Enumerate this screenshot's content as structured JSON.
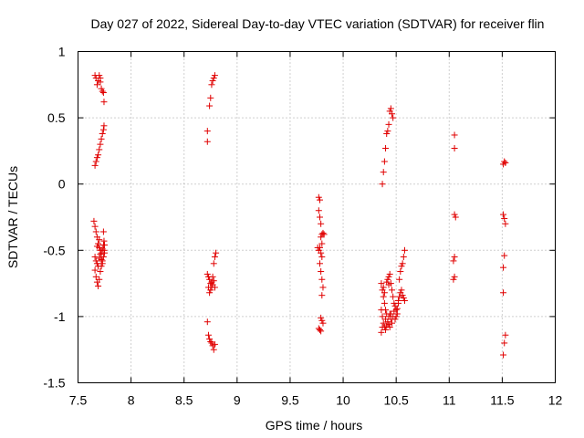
{
  "chart_data": {
    "type": "scatter",
    "title": "Day 027 of 2022, Sidereal Day-to-day VTEC variation (SDTVAR) for receiver flin",
    "xlabel": "GPS time / hours",
    "ylabel": "SDTVAR / TECUs",
    "xlim": [
      7.5,
      12
    ],
    "ylim": [
      -1.5,
      1
    ],
    "xticks": [
      "7.5",
      "8",
      "8.5",
      "9",
      "9.5",
      "10",
      "10.5",
      "11",
      "11.5",
      "12"
    ],
    "yticks": [
      "-1.5",
      "-1",
      "-0.5",
      "0",
      "0.5",
      "1"
    ],
    "grid": true,
    "marker": "+",
    "color": "#e00000",
    "series": [
      {
        "name": "SDTVAR",
        "points": [
          [
            7.66,
            0.82
          ],
          [
            7.67,
            0.8
          ],
          [
            7.68,
            0.75
          ],
          [
            7.69,
            0.78
          ],
          [
            7.7,
            0.82
          ],
          [
            7.71,
            0.8
          ],
          [
            7.71,
            0.77
          ],
          [
            7.72,
            0.72
          ],
          [
            7.73,
            0.7
          ],
          [
            7.74,
            0.69
          ],
          [
            7.745,
            0.62
          ],
          [
            7.66,
            0.14
          ],
          [
            7.67,
            0.17
          ],
          [
            7.68,
            0.2
          ],
          [
            7.69,
            0.22
          ],
          [
            7.7,
            0.26
          ],
          [
            7.71,
            0.3
          ],
          [
            7.72,
            0.34
          ],
          [
            7.73,
            0.38
          ],
          [
            7.74,
            0.41
          ],
          [
            7.745,
            0.44
          ],
          [
            7.65,
            -0.28
          ],
          [
            7.66,
            -0.32
          ],
          [
            7.67,
            -0.36
          ],
          [
            7.68,
            -0.4
          ],
          [
            7.69,
            -0.45
          ],
          [
            7.7,
            -0.48
          ],
          [
            7.71,
            -0.5
          ],
          [
            7.72,
            -0.52
          ],
          [
            7.73,
            -0.49
          ],
          [
            7.74,
            -0.46
          ],
          [
            7.745,
            -0.43
          ],
          [
            7.75,
            -0.52
          ],
          [
            7.66,
            -0.55
          ],
          [
            7.67,
            -0.58
          ],
          [
            7.68,
            -0.6
          ],
          [
            7.69,
            -0.62
          ],
          [
            7.7,
            -0.56
          ],
          [
            7.71,
            -0.53
          ],
          [
            7.72,
            -0.57
          ],
          [
            7.73,
            -0.6
          ],
          [
            7.74,
            -0.55
          ],
          [
            7.745,
            -0.5
          ],
          [
            7.75,
            -0.46
          ],
          [
            7.66,
            -0.65
          ],
          [
            7.67,
            -0.7
          ],
          [
            7.68,
            -0.74
          ],
          [
            7.69,
            -0.77
          ],
          [
            7.7,
            -0.72
          ],
          [
            7.71,
            -0.66
          ],
          [
            7.72,
            -0.62
          ],
          [
            7.73,
            -0.58
          ],
          [
            7.74,
            -0.36
          ],
          [
            7.7,
            -0.42
          ],
          [
            7.68,
            -0.47
          ],
          [
            8.72,
            0.4
          ],
          [
            8.72,
            0.32
          ],
          [
            8.74,
            0.59
          ],
          [
            8.75,
            0.65
          ],
          [
            8.76,
            0.75
          ],
          [
            8.77,
            0.78
          ],
          [
            8.78,
            0.8
          ],
          [
            8.79,
            0.82
          ],
          [
            8.72,
            -0.68
          ],
          [
            8.73,
            -0.7
          ],
          [
            8.74,
            -0.72
          ],
          [
            8.75,
            -0.75
          ],
          [
            8.76,
            -0.78
          ],
          [
            8.77,
            -0.76
          ],
          [
            8.78,
            -0.73
          ],
          [
            8.79,
            -0.78
          ],
          [
            8.73,
            -0.78
          ],
          [
            8.74,
            -0.82
          ],
          [
            8.75,
            -0.8
          ],
          [
            8.76,
            -0.74
          ],
          [
            8.77,
            -0.7
          ],
          [
            8.78,
            -0.6
          ],
          [
            8.79,
            -0.55
          ],
          [
            8.8,
            -0.52
          ],
          [
            8.72,
            -1.04
          ],
          [
            8.73,
            -1.14
          ],
          [
            8.74,
            -1.17
          ],
          [
            8.75,
            -1.19
          ],
          [
            8.76,
            -1.2
          ],
          [
            8.77,
            -1.22
          ],
          [
            8.78,
            -1.25
          ],
          [
            8.79,
            -1.21
          ],
          [
            9.77,
            -0.1
          ],
          [
            9.78,
            -0.12
          ],
          [
            9.77,
            -0.2
          ],
          [
            9.78,
            -0.25
          ],
          [
            9.79,
            -0.3
          ],
          [
            9.8,
            -0.38
          ],
          [
            9.79,
            -0.4
          ],
          [
            9.8,
            -0.45
          ],
          [
            9.78,
            -0.48
          ],
          [
            9.79,
            -0.52
          ],
          [
            9.8,
            -0.55
          ],
          [
            9.78,
            -0.6
          ],
          [
            9.79,
            -0.66
          ],
          [
            9.8,
            -0.72
          ],
          [
            9.81,
            -0.78
          ],
          [
            9.8,
            -0.84
          ],
          [
            9.77,
            -0.5
          ],
          [
            9.76,
            -0.48
          ],
          [
            9.81,
            -0.37
          ],
          [
            9.82,
            -0.38
          ],
          [
            9.79,
            -1.01
          ],
          [
            9.8,
            -1.03
          ],
          [
            9.81,
            -1.05
          ],
          [
            9.77,
            -1.09
          ],
          [
            9.78,
            -1.1
          ],
          [
            9.79,
            -1.11
          ],
          [
            10.37,
            0.0
          ],
          [
            10.38,
            0.09
          ],
          [
            10.39,
            0.17
          ],
          [
            10.4,
            0.27
          ],
          [
            10.41,
            0.38
          ],
          [
            10.42,
            0.4
          ],
          [
            10.43,
            0.45
          ],
          [
            10.44,
            0.55
          ],
          [
            10.45,
            0.57
          ],
          [
            10.46,
            0.53
          ],
          [
            10.47,
            0.5
          ],
          [
            10.36,
            -0.75
          ],
          [
            10.37,
            -0.8
          ],
          [
            10.38,
            -0.85
          ],
          [
            10.39,
            -0.9
          ],
          [
            10.4,
            -0.95
          ],
          [
            10.41,
            -0.98
          ],
          [
            10.42,
            -0.72
          ],
          [
            10.43,
            -0.7
          ],
          [
            10.44,
            -0.68
          ],
          [
            10.45,
            -0.75
          ],
          [
            10.46,
            -0.8
          ],
          [
            10.47,
            -0.85
          ],
          [
            10.48,
            -0.9
          ],
          [
            10.49,
            -0.92
          ],
          [
            10.5,
            -0.95
          ],
          [
            10.51,
            -0.98
          ],
          [
            10.52,
            -0.88
          ],
          [
            10.53,
            -0.85
          ],
          [
            10.54,
            -0.82
          ],
          [
            10.55,
            -0.8
          ],
          [
            10.56,
            -0.84
          ],
          [
            10.57,
            -0.86
          ],
          [
            10.58,
            -0.88
          ],
          [
            10.36,
            -0.95
          ],
          [
            10.37,
            -1.0
          ],
          [
            10.38,
            -1.05
          ],
          [
            10.39,
            -1.08
          ],
          [
            10.4,
            -1.1
          ],
          [
            10.41,
            -1.07
          ],
          [
            10.42,
            -1.04
          ],
          [
            10.43,
            -1.0
          ],
          [
            10.44,
            -0.98
          ],
          [
            10.45,
            -1.02
          ],
          [
            10.46,
            -1.05
          ],
          [
            10.47,
            -1.0
          ],
          [
            10.48,
            -0.96
          ],
          [
            10.49,
            -1.02
          ],
          [
            10.5,
            -1.0
          ],
          [
            10.51,
            -0.94
          ],
          [
            10.52,
            -0.9
          ],
          [
            10.36,
            -1.12
          ],
          [
            10.37,
            -1.08
          ],
          [
            10.4,
            -1.02
          ],
          [
            10.43,
            -1.06
          ],
          [
            10.44,
            -1.08
          ],
          [
            10.45,
            -0.98
          ],
          [
            10.38,
            -0.78
          ],
          [
            10.39,
            -0.82
          ],
          [
            10.41,
            -0.74
          ],
          [
            10.43,
            -0.76
          ],
          [
            10.53,
            -0.72
          ],
          [
            10.54,
            -0.66
          ],
          [
            10.55,
            -0.62
          ],
          [
            10.56,
            -0.6
          ],
          [
            10.57,
            -0.55
          ],
          [
            10.58,
            -0.5
          ],
          [
            11.05,
            0.37
          ],
          [
            11.05,
            0.27
          ],
          [
            11.05,
            -0.23
          ],
          [
            11.06,
            -0.25
          ],
          [
            11.05,
            -0.55
          ],
          [
            11.04,
            -0.58
          ],
          [
            11.05,
            -0.7
          ],
          [
            11.04,
            -0.72
          ],
          [
            11.52,
            0.17
          ],
          [
            11.53,
            0.16
          ],
          [
            11.51,
            0.15
          ],
          [
            11.51,
            -0.23
          ],
          [
            11.52,
            -0.26
          ],
          [
            11.53,
            -0.3
          ],
          [
            11.52,
            -0.54
          ],
          [
            11.51,
            -0.63
          ],
          [
            11.51,
            -0.82
          ],
          [
            11.53,
            -1.14
          ],
          [
            11.52,
            -1.2
          ],
          [
            11.51,
            -1.29
          ]
        ]
      }
    ]
  }
}
